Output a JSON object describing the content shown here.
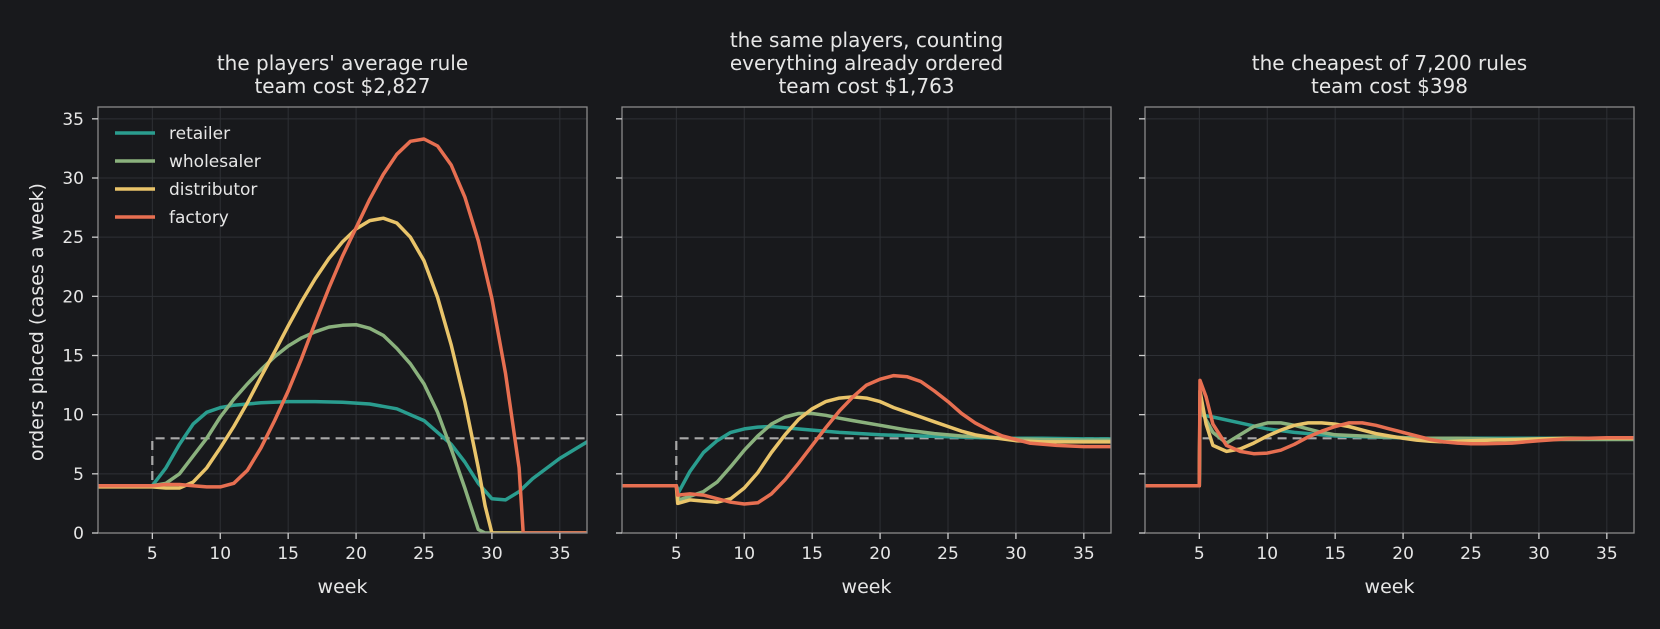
{
  "chart_data": {
    "type": "line",
    "ylabel": "orders placed (cases a week)",
    "xlabel": "week",
    "xlim": [
      1,
      37
    ],
    "ylim": [
      0,
      36
    ],
    "xticks": [
      5,
      10,
      15,
      20,
      25,
      30,
      35
    ],
    "yticks": [
      0,
      5,
      10,
      15,
      20,
      25,
      30,
      35
    ],
    "grid": true,
    "legend": {
      "placement": "top-left",
      "entries": [
        "retailer",
        "wholesaler",
        "distributor",
        "factory"
      ]
    },
    "colors": {
      "retailer": "#2a9d8f",
      "wholesaler": "#8ab17d",
      "distributor": "#e9c46a",
      "factory": "#e76f51",
      "demand": "#a8a8a8",
      "background": "#18191c",
      "grid": "#2e3035",
      "spine": "#8a8a8a"
    },
    "panels": [
      {
        "title_lines": [
          "the players' average rule",
          "team cost $2,827"
        ],
        "demand": {
          "x": [
            1,
            5,
            5,
            37
          ],
          "y": [
            4,
            4,
            8,
            8
          ]
        },
        "series": [
          {
            "name": "retailer",
            "x": [
              1,
              5,
              6,
              7,
              8,
              9,
              10,
              11,
              12,
              13,
              15,
              17,
              19,
              21,
              23,
              25,
              27,
              28,
              29,
              30,
              31,
              32,
              33,
              35,
              37
            ],
            "y": [
              4,
              4,
              5.5,
              7.5,
              9.2,
              10.2,
              10.6,
              10.8,
              10.9,
              11,
              11.1,
              11.1,
              11.05,
              10.9,
              10.5,
              9.5,
              7.5,
              6,
              4.2,
              2.9,
              2.8,
              3.5,
              4.6,
              6.3,
              7.7
            ]
          },
          {
            "name": "wholesaler",
            "x": [
              1,
              5,
              6,
              7,
              8,
              9,
              10,
              11,
              12,
              13,
              14,
              15,
              16,
              17,
              18,
              19,
              20,
              21,
              22,
              23,
              24,
              25,
              26,
              27,
              28,
              29,
              29.5,
              37
            ],
            "y": [
              4,
              4,
              4.2,
              5,
              6.5,
              8,
              9.8,
              11.3,
              12.6,
              13.8,
              14.9,
              15.8,
              16.5,
              17,
              17.4,
              17.55,
              17.6,
              17.3,
              16.7,
              15.6,
              14.3,
              12.6,
              10.2,
              7.1,
              3.8,
              0.3,
              0,
              0
            ]
          },
          {
            "name": "distributor",
            "x": [
              1,
              5,
              6,
              7,
              8,
              9,
              10,
              11,
              12,
              13,
              14,
              15,
              16,
              17,
              18,
              19,
              20,
              21,
              22,
              23,
              24,
              25,
              26,
              27,
              28,
              29,
              29.5,
              30,
              37
            ],
            "y": [
              3.9,
              3.9,
              3.8,
              3.8,
              4.3,
              5.5,
              7.2,
              9,
              11,
              13.2,
              15.3,
              17.5,
              19.6,
              21.5,
              23.2,
              24.6,
              25.7,
              26.4,
              26.6,
              26.2,
              25,
              23,
              19.9,
              15.9,
              11.1,
              5.5,
              2.3,
              0,
              0
            ]
          },
          {
            "name": "factory",
            "x": [
              1,
              5,
              6,
              7,
              8,
              9,
              10,
              11,
              12,
              13,
              14,
              15,
              16,
              17,
              18,
              19,
              20,
              21,
              22,
              23,
              24,
              25,
              26,
              27,
              28,
              29,
              30,
              31,
              32,
              32.3,
              37
            ],
            "y": [
              4,
              4,
              4.1,
              4.1,
              4,
              3.9,
              3.9,
              4.2,
              5.3,
              7.2,
              9.5,
              12,
              14.8,
              17.8,
              20.7,
              23.4,
              25.8,
              28.2,
              30.3,
              32,
              33.1,
              33.3,
              32.7,
              31.1,
              28.4,
              24.7,
              19.8,
              13.5,
              5.5,
              0,
              0
            ]
          }
        ]
      },
      {
        "title_lines": [
          "the same players, counting",
          "everything already ordered",
          "team cost $1,763"
        ],
        "demand": {
          "x": [
            1,
            5,
            5,
            37
          ],
          "y": [
            4,
            4,
            8,
            8
          ]
        },
        "series": [
          {
            "name": "retailer",
            "x": [
              1,
              5,
              5.2,
              6,
              7,
              8,
              9,
              10,
              11,
              12,
              13,
              15,
              17,
              20,
              23,
              26,
              29,
              32,
              35,
              37
            ],
            "y": [
              4,
              4,
              3.5,
              5.2,
              6.8,
              7.8,
              8.5,
              8.8,
              8.95,
              9,
              8.9,
              8.7,
              8.5,
              8.3,
              8.2,
              8.1,
              8.0,
              8.0,
              7.95,
              7.95
            ]
          },
          {
            "name": "wholesaler",
            "x": [
              1,
              5,
              5.2,
              6,
              7,
              8,
              9,
              10,
              11,
              12,
              13,
              14,
              15,
              16,
              17,
              18,
              20,
              22,
              24,
              26,
              28,
              30,
              32,
              35,
              37
            ],
            "y": [
              4,
              4,
              2.8,
              3.1,
              3.5,
              4.3,
              5.6,
              7,
              8.2,
              9.2,
              9.8,
              10.1,
              10.1,
              9.95,
              9.7,
              9.5,
              9.1,
              8.7,
              8.4,
              8.2,
              8.1,
              7.95,
              7.9,
              7.85,
              7.85
            ]
          },
          {
            "name": "distributor",
            "x": [
              1,
              5,
              5.1,
              6,
              7,
              8,
              9,
              10,
              11,
              12,
              13,
              14,
              15,
              16,
              17,
              18,
              19,
              20,
              21,
              22,
              23,
              24,
              25,
              26,
              27,
              28,
              30,
              32,
              35,
              37
            ],
            "y": [
              4,
              4,
              2.5,
              2.8,
              2.7,
              2.6,
              2.9,
              3.8,
              5.1,
              6.8,
              8.3,
              9.6,
              10.5,
              11.1,
              11.4,
              11.5,
              11.4,
              11.1,
              10.6,
              10.2,
              9.8,
              9.4,
              9.0,
              8.6,
              8.3,
              8.1,
              7.8,
              7.7,
              7.7,
              7.7
            ]
          },
          {
            "name": "factory",
            "x": [
              1,
              5,
              5.1,
              6,
              7,
              8,
              9,
              10,
              11,
              12,
              13,
              14,
              15,
              16,
              17,
              18,
              19,
              20,
              21,
              22,
              23,
              24,
              25,
              26,
              27,
              28,
              29,
              30,
              31,
              32,
              33,
              35,
              37
            ],
            "y": [
              4,
              4,
              3.2,
              3.3,
              3.2,
              2.9,
              2.6,
              2.45,
              2.55,
              3.3,
              4.5,
              5.9,
              7.4,
              8.9,
              10.3,
              11.5,
              12.5,
              13.0,
              13.3,
              13.2,
              12.8,
              12.0,
              11.1,
              10.1,
              9.3,
              8.7,
              8.2,
              7.9,
              7.6,
              7.5,
              7.4,
              7.3,
              7.3
            ]
          }
        ]
      },
      {
        "title_lines": [
          "the cheapest of 7,200 rules",
          "team cost $398"
        ],
        "demand": {
          "x": [
            1,
            5,
            5,
            22.5
          ],
          "y": [
            4,
            4,
            8,
            8
          ]
        },
        "series": [
          {
            "name": "retailer",
            "x": [
              1,
              5,
              5.05,
              6,
              8,
              10,
              12,
              15,
              18,
              22,
              26,
              30,
              35,
              37
            ],
            "y": [
              4,
              4,
              10,
              9.8,
              9.3,
              8.8,
              8.5,
              8.2,
              8.1,
              8.0,
              8.0,
              8.0,
              8.0,
              8.0
            ]
          },
          {
            "name": "wholesaler",
            "x": [
              1,
              5,
              5.05,
              6,
              7,
              8,
              9,
              10,
              11,
              12,
              13,
              14,
              15,
              17,
              19,
              21,
              24,
              28,
              32,
              37
            ],
            "y": [
              4,
              4,
              10.5,
              8.5,
              7.6,
              8.3,
              9,
              9.3,
              9.3,
              9.1,
              8.8,
              8.5,
              8.3,
              8.2,
              8.1,
              8.0,
              8.0,
              7.9,
              7.9,
              7.9
            ]
          },
          {
            "name": "distributor",
            "x": [
              1,
              5,
              5.05,
              5.5,
              6,
              7,
              8,
              9,
              10,
              11,
              12,
              13,
              14,
              15,
              16,
              17,
              18,
              19,
              20,
              21,
              22,
              23,
              24,
              25,
              28,
              32,
              37
            ],
            "y": [
              4,
              4,
              12,
              9.2,
              7.4,
              6.9,
              7.1,
              7.6,
              8.2,
              8.7,
              9.1,
              9.3,
              9.3,
              9.2,
              9.0,
              8.7,
              8.4,
              8.2,
              8.0,
              7.85,
              7.75,
              7.7,
              7.75,
              7.8,
              7.9,
              8.0,
              8.0
            ]
          },
          {
            "name": "factory",
            "x": [
              1,
              5,
              5.05,
              5.5,
              6,
              7,
              8,
              9,
              10,
              11,
              12,
              13,
              14,
              15,
              16,
              17,
              18,
              19,
              20,
              21,
              22,
              23,
              24,
              25,
              26,
              28,
              30,
              32,
              35,
              37
            ],
            "y": [
              4,
              4,
              12.9,
              11.5,
              9.2,
              7.4,
              6.9,
              6.7,
              6.75,
              7.0,
              7.5,
              8.1,
              8.6,
              9.0,
              9.3,
              9.3,
              9.1,
              8.8,
              8.5,
              8.2,
              7.9,
              7.7,
              7.6,
              7.55,
              7.55,
              7.6,
              7.8,
              7.95,
              8.05,
              8.05
            ]
          }
        ]
      }
    ]
  }
}
